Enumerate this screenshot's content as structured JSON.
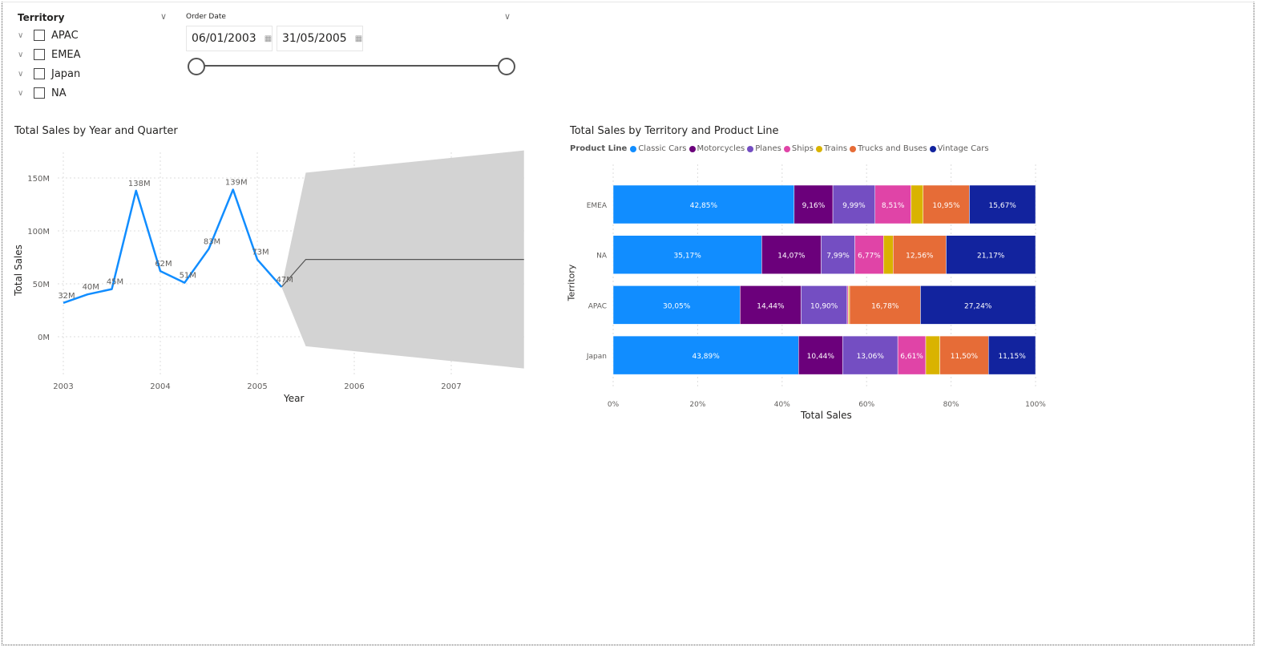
{
  "territory_slicer": {
    "title": "Territory",
    "items": [
      {
        "label": "APAC",
        "checked": false
      },
      {
        "label": "EMEA",
        "checked": false
      },
      {
        "label": "Japan",
        "checked": false
      },
      {
        "label": "NA",
        "checked": false
      }
    ]
  },
  "date_slicer": {
    "title": "Order Date",
    "start": "06/01/2003",
    "end": "31/05/2005",
    "range_fraction": [
      0,
      1
    ]
  },
  "chart_data": [
    {
      "type": "line",
      "title": "Total Sales by Year and Quarter",
      "xlabel": "Year",
      "ylabel": "Total Sales",
      "x_ticks": [
        "2003",
        "2004",
        "2005",
        "2006",
        "2007"
      ],
      "y_ticks": [
        "0M",
        "50M",
        "100M",
        "150M"
      ],
      "grid": true,
      "color": "#118DFF",
      "series": [
        {
          "x": [
            2003.0,
            2003.25,
            2003.5,
            2003.75,
            2004.0,
            2004.25,
            2004.5,
            2004.75,
            2005.0,
            2005.25
          ],
          "values": [
            32,
            40,
            45,
            138,
            62,
            51,
            83,
            139,
            73,
            47
          ],
          "labels": [
            "32M",
            "40M",
            "45M",
            "138M",
            "62M",
            "51M",
            "83M",
            "139M",
            "73M",
            "47M"
          ]
        }
      ],
      "forecast": {
        "x": [
          2005.25,
          2005.5,
          2007.75
        ],
        "values": [
          47,
          73,
          73
        ],
        "upper": [
          47,
          155,
          176
        ],
        "lower": [
          47,
          -9,
          -30
        ],
        "color": "#555555",
        "band_color": "#d3d3d3"
      }
    },
    {
      "type": "bar",
      "stacked": "100%",
      "orientation": "horizontal",
      "title": "Total Sales by Territory and Product Line",
      "xlabel": "Total Sales",
      "ylabel": "Territory",
      "legend_title": "Product Line",
      "legend_position": "top-left",
      "x_ticks": [
        "0%",
        "20%",
        "40%",
        "60%",
        "80%",
        "100%"
      ],
      "categories": [
        "EMEA",
        "NA",
        "APAC",
        "Japan"
      ],
      "series": [
        {
          "name": "Classic Cars",
          "color": "#118DFF",
          "values": [
            42.85,
            35.17,
            30.05,
            43.89
          ],
          "labels": [
            "42,85%",
            "35,17%",
            "30,05%",
            "43,89%"
          ]
        },
        {
          "name": "Motorcycles",
          "color": "#6B007B",
          "values": [
            9.16,
            14.07,
            14.44,
            10.44
          ],
          "labels": [
            "9,16%",
            "14,07%",
            "14,44%",
            "10,44%"
          ]
        },
        {
          "name": "Planes",
          "color": "#744EC2",
          "values": [
            9.99,
            7.99,
            10.9,
            13.06
          ],
          "labels": [
            "9,99%",
            "7,99%",
            "10,90%",
            "13,06%"
          ]
        },
        {
          "name": "Ships",
          "color": "#E044A7",
          "values": [
            8.51,
            6.77,
            0.3,
            6.61
          ],
          "labels": [
            "8,51%",
            "6,77%",
            "",
            "6,61%"
          ]
        },
        {
          "name": "Trains",
          "color": "#D9B300",
          "values": [
            2.87,
            2.27,
            0.29,
            3.35
          ],
          "labels": [
            "",
            "",
            "",
            ""
          ]
        },
        {
          "name": "Trucks and Buses",
          "color": "#E66C37",
          "values": [
            10.95,
            12.56,
            16.78,
            11.5
          ],
          "labels": [
            "10,95%",
            "12,56%",
            "16,78%",
            "11,50%"
          ]
        },
        {
          "name": "Vintage Cars",
          "color": "#12239E",
          "values": [
            15.67,
            21.17,
            27.24,
            11.15
          ],
          "labels": [
            "15,67%",
            "21,17%",
            "27,24%",
            "11,15%"
          ]
        }
      ]
    }
  ]
}
